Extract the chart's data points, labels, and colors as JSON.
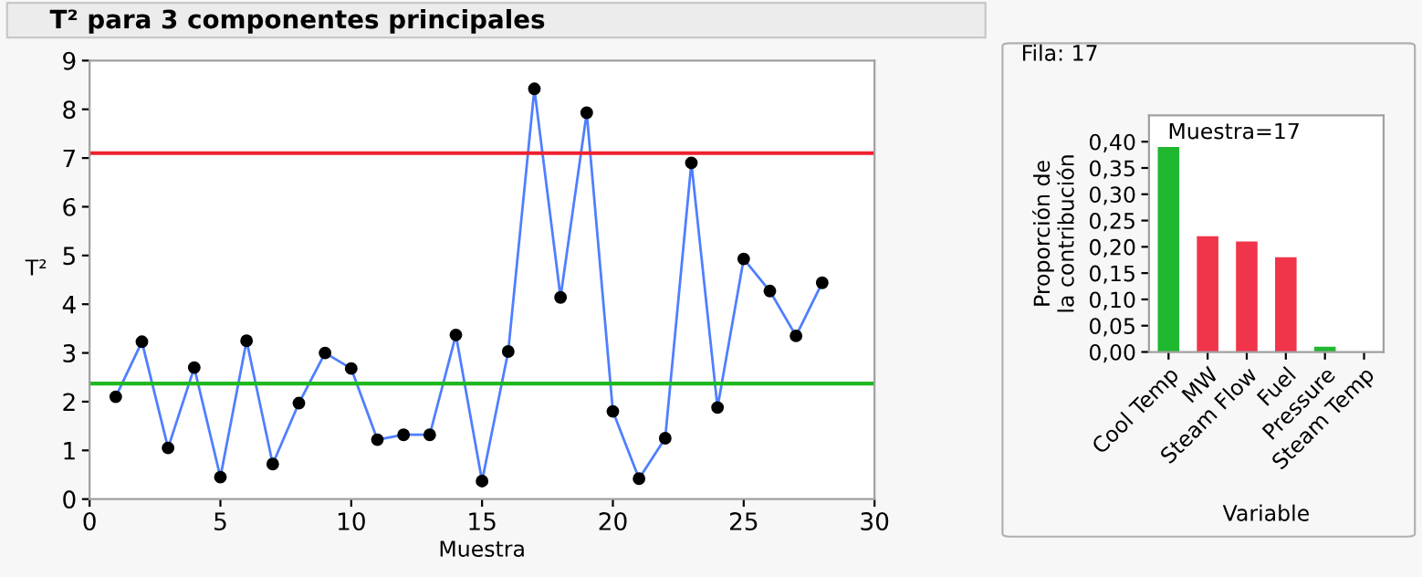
{
  "chart_data": [
    {
      "type": "line",
      "title": "T² para 3 componentes principales",
      "xlabel": "Muestra",
      "ylabel": "T²",
      "x": [
        1,
        2,
        3,
        4,
        5,
        6,
        7,
        8,
        9,
        10,
        11,
        12,
        13,
        14,
        15,
        16,
        17,
        18,
        19,
        20,
        21,
        22,
        23,
        24,
        25,
        26,
        27,
        28
      ],
      "series": [
        {
          "color": "#4f7fff",
          "values": [
            2.1,
            3.23,
            1.05,
            2.7,
            0.45,
            3.25,
            0.72,
            1.97,
            3.0,
            2.68,
            1.22,
            1.32,
            1.32,
            3.37,
            0.37,
            3.03,
            8.42,
            4.14,
            7.93,
            1.8,
            0.42,
            1.25,
            6.9,
            1.88,
            4.93,
            4.27,
            3.35,
            4.44
          ]
        }
      ],
      "marker": "circle",
      "xlim": [
        0,
        30
      ],
      "xticks": [
        0,
        5,
        10,
        15,
        20,
        25,
        30
      ],
      "ylim": [
        0,
        9
      ],
      "yticks": [
        0,
        1,
        2,
        3,
        4,
        5,
        6,
        7,
        8,
        9
      ],
      "grid": false,
      "legend": false,
      "ref_lines": [
        {
          "axis": "y",
          "value": 7.1,
          "color": "#f0202e"
        },
        {
          "axis": "y",
          "value": 2.37,
          "color": "#1fb81f"
        }
      ]
    },
    {
      "type": "bar",
      "title": "Fila: 17",
      "xlabel": "Variable",
      "ylabel": "Proporción de\nla contribución",
      "categories": [
        "Cool Temp",
        "MW",
        "Steam Flow",
        "Fuel",
        "Pressure",
        "Steam Temp"
      ],
      "values": [
        0.39,
        0.22,
        0.21,
        0.18,
        0.01,
        0
      ],
      "colors": [
        "#20b830",
        "#f0344a",
        "#f0344a",
        "#f0344a",
        "#20b830",
        "#20b830"
      ],
      "ylim": [
        0,
        0.45
      ],
      "yticks": [
        {
          "value": 0,
          "label": "0,00"
        },
        {
          "value": 0.05,
          "label": "0,05"
        },
        {
          "value": 0.1,
          "label": "0,10"
        },
        {
          "value": 0.15,
          "label": "0,15"
        },
        {
          "value": 0.2,
          "label": "0,20"
        },
        {
          "value": 0.25,
          "label": "0,25"
        },
        {
          "value": 0.3,
          "label": "0,30"
        },
        {
          "value": 0.35,
          "label": "0,35"
        },
        {
          "value": 0.4,
          "label": "0,40"
        }
      ],
      "annotations": [
        "Muestra=17"
      ],
      "grid": false,
      "legend": false
    }
  ]
}
